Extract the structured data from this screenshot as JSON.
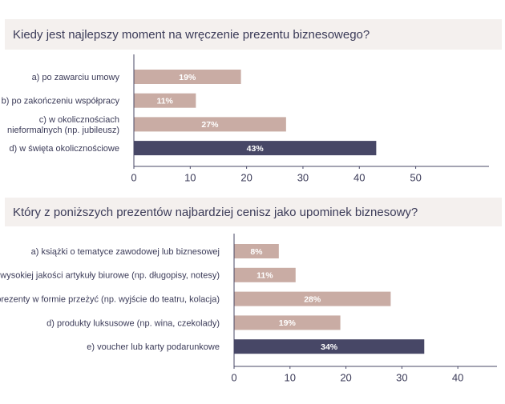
{
  "chart_data": [
    {
      "type": "bar",
      "title": "Kiedy jest najlepszy moment na wręczenie prezentu biznesowego?",
      "categories": [
        [
          "a) po zawarciu umowy"
        ],
        [
          "b) po zakończeniu współpracy"
        ],
        [
          "c) w okolicznościach",
          "nieformalnych (np. jubileusz)"
        ],
        [
          "d) w święta okolicznościowe"
        ]
      ],
      "values": [
        19,
        11,
        27,
        43
      ],
      "value_labels": [
        "19%",
        "11%",
        "27%",
        "43%"
      ],
      "colors": [
        "#c9aca4",
        "#c9aca4",
        "#c9aca4",
        "#474766"
      ],
      "xlim": [
        0,
        63
      ],
      "xticks": [
        0,
        10,
        20,
        30,
        40,
        50
      ]
    },
    {
      "type": "bar",
      "title": "Który z poniższych prezentów najbardziej cenisz jako upominek biznesowy?",
      "categories": [
        [
          "a) książki o tematyce zawodowej lub biznesowej"
        ],
        [
          "b) wysokiej jakości artykuły biurowe (np. długopisy, notesy)"
        ],
        [
          "c) prezenty w formie przeżyć (np. wyjście do teatru, kolacja)"
        ],
        [
          "d) produkty luksusowe (np. wina, czekolady)"
        ],
        [
          "e) voucher lub karty podarunkowe"
        ]
      ],
      "values": [
        8,
        11,
        28,
        19,
        34
      ],
      "value_labels": [
        "8%",
        "11%",
        "28%",
        "19%",
        "34%"
      ],
      "colors": [
        "#c9aca4",
        "#c9aca4",
        "#c9aca4",
        "#c9aca4",
        "#474766"
      ],
      "xlim": [
        0,
        47
      ],
      "xticks": [
        0,
        10,
        20,
        30,
        40
      ]
    }
  ]
}
